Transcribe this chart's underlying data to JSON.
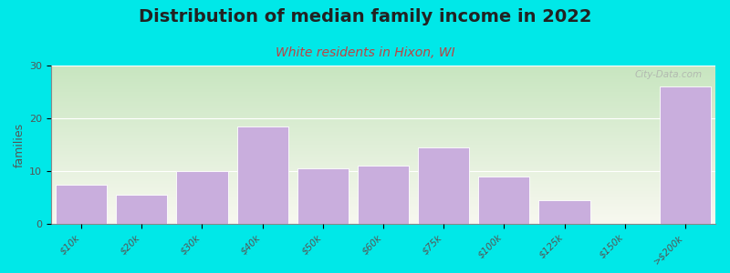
{
  "title": "Distribution of median family income in 2022",
  "subtitle": "White residents in Hixon, WI",
  "categories": [
    "$10k",
    "$20k",
    "$30k",
    "$40k",
    "$50k",
    "$60k",
    "$75k",
    "$100k",
    "$125k",
    "$150k",
    ">$200k"
  ],
  "values": [
    7.5,
    5.5,
    10,
    18.5,
    10.5,
    11,
    14.5,
    9,
    4.5,
    0,
    26
  ],
  "bar_color": "#c9aedd",
  "bar_edge_color": "#ffffff",
  "background_outer": "#00e8e8",
  "background_inner_topleft": "#c8e6c0",
  "background_inner_bottomright": "#f8f8f0",
  "title_color": "#222222",
  "subtitle_color": "#bb4444",
  "ylabel": "families",
  "ylim": [
    0,
    30
  ],
  "yticks": [
    0,
    10,
    20,
    30
  ],
  "watermark": "City-Data.com",
  "title_fontsize": 14,
  "subtitle_fontsize": 10,
  "ylabel_fontsize": 9
}
